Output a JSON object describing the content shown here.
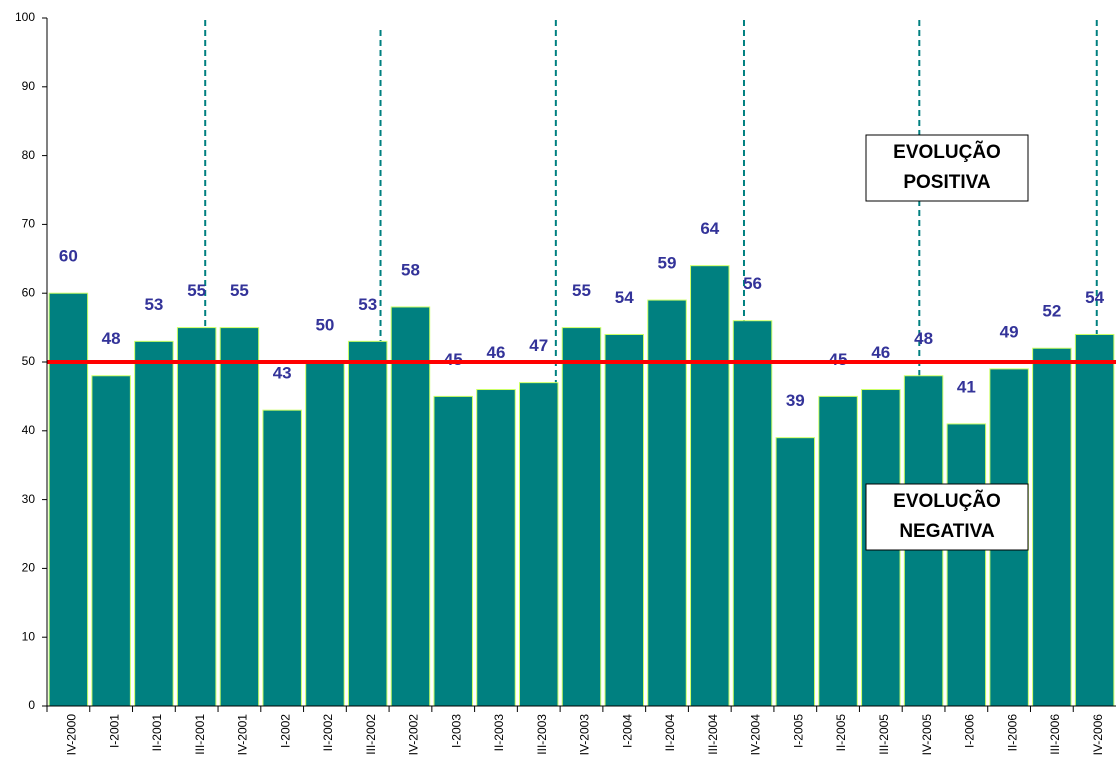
{
  "chart_data": {
    "type": "bar",
    "categories": [
      "IV-2000",
      "I-2001",
      "II-2001",
      "III-2001",
      "IV-2001",
      "I-2002",
      "II-2002",
      "III-2002",
      "IV-2002",
      "I-2003",
      "II-2003",
      "III-2003",
      "IV-2003",
      "I-2004",
      "II-2004",
      "III-2004",
      "IV-2004",
      "I-2005",
      "II-2005",
      "III-2005",
      "IV-2005",
      "I-2006",
      "II-2006",
      "III-2006",
      "IV-2006"
    ],
    "values": [
      60,
      48,
      53,
      55,
      55,
      43,
      50,
      53,
      58,
      45,
      46,
      47,
      55,
      54,
      59,
      64,
      56,
      39,
      45,
      46,
      48,
      41,
      49,
      52,
      54
    ],
    "color": "#008080",
    "ylim": [
      0,
      100
    ],
    "yticks": [
      0,
      10,
      20,
      30,
      40,
      50,
      60,
      70,
      80,
      90,
      100
    ],
    "reference_line": {
      "value": 50,
      "color": "#ff0000"
    },
    "annotations": [
      [
        "EVOLUÇÃO",
        "POSITIVA"
      ],
      [
        "EVOLUÇÃO",
        "NEGATIVA"
      ]
    ]
  }
}
